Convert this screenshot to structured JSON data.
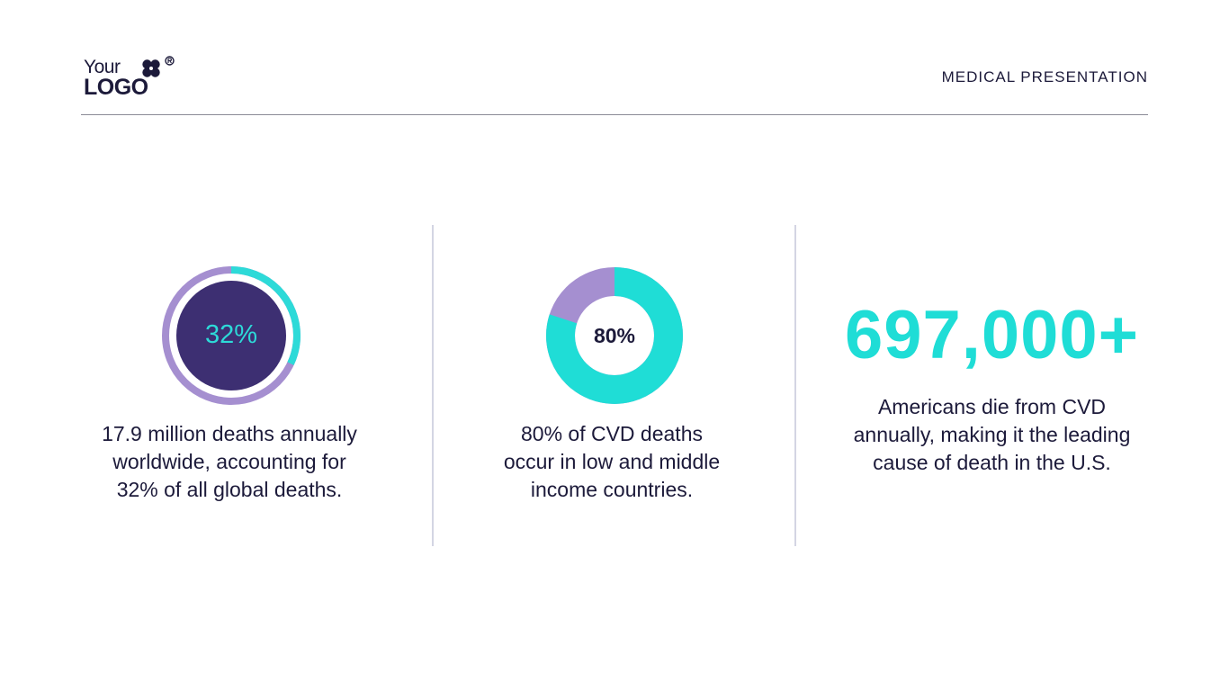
{
  "header": {
    "logo_line1": "Your",
    "logo_line2": "LOGO",
    "title": "MEDICAL PRESENTATION"
  },
  "colors": {
    "teal": "#1fddd6",
    "purple": "#a58fd0",
    "dark_purple": "#3d2f72",
    "navy": "#1c1a3a"
  },
  "stats": [
    {
      "value_label": "32%",
      "percent": 32,
      "caption_lines": [
        "17.9 million deaths annually",
        "worldwide, accounting for",
        "32% of all global deaths."
      ]
    },
    {
      "value_label": "80%",
      "percent": 80,
      "caption_lines": [
        "80% of CVD deaths",
        "occur in low and middle",
        "income countries."
      ]
    },
    {
      "value_label": "697,000+",
      "caption_lines": [
        "Americans die from CVD",
        "annually, making it the leading",
        "cause of death in the U.S."
      ]
    }
  ],
  "chart_data": [
    {
      "type": "pie",
      "categories": [
        "",
        ""
      ],
      "values": [
        32,
        68
      ],
      "colors": [
        "#2ddad8",
        "#a58fd0"
      ],
      "center_label": "32%"
    },
    {
      "type": "pie",
      "categories": [
        "",
        ""
      ],
      "values": [
        80,
        20
      ],
      "colors": [
        "#1fddd6",
        "#a58fd0"
      ],
      "center_label": "80%"
    }
  ]
}
